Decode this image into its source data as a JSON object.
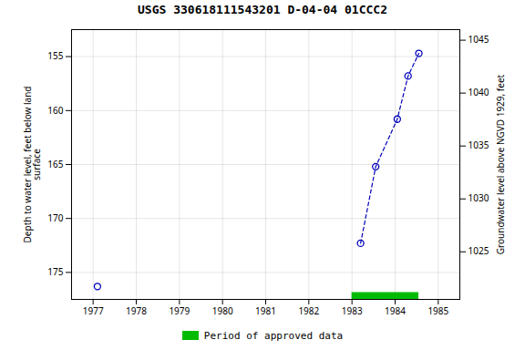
{
  "chart_data": {
    "type": "line",
    "title": "USGS 330618111543201 D-04-04 01CCC2",
    "ylabel": "Depth to water level, feet below land\nsurface",
    "y2label": "Groundwater level above NGVD 1929, feet",
    "series": [
      {
        "x": [
          1977.1
        ],
        "values": [
          176.3
        ],
        "color": "#0000bb",
        "marker": "circle",
        "line_style": "none"
      },
      {
        "x": [
          1983.2,
          1983.55,
          1984.05,
          1984.3,
          1984.55
        ],
        "values": [
          172.3,
          165.2,
          160.8,
          156.8,
          154.7
        ],
        "color": "#0000bb",
        "marker": "circle",
        "line_style": "dashed"
      }
    ],
    "xlim": [
      1976.5,
      1985.5
    ],
    "xticks": [
      1977,
      1978,
      1979,
      1980,
      1981,
      1982,
      1983,
      1984,
      1985
    ],
    "ylim": [
      177.5,
      152.5
    ],
    "yticks": [
      155,
      160,
      165,
      170,
      175
    ],
    "y2lim": [
      1020.5,
      1046.0
    ],
    "y2ticks": [
      1025,
      1030,
      1035,
      1040,
      1045
    ],
    "grid": true,
    "legend": "bottom",
    "approved_period": {
      "x_start": 1983.0,
      "x_end": 1984.55,
      "color": "#00bb00",
      "label": "Period of approved data"
    }
  }
}
